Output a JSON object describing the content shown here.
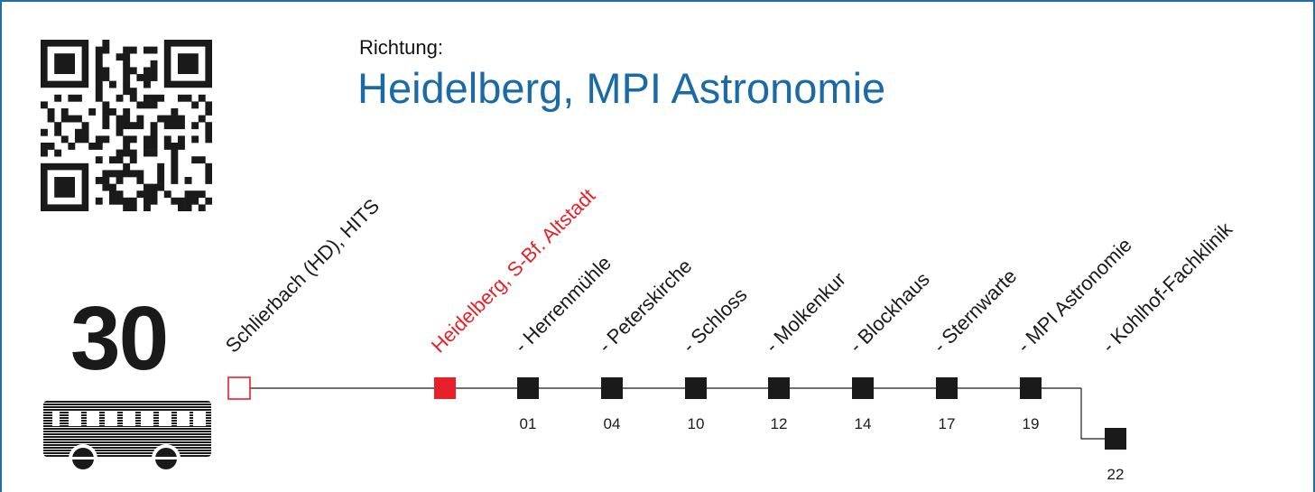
{
  "direction": {
    "label": "Richtung:",
    "destination": "Heidelberg, MPI Astronomie"
  },
  "line": {
    "number": "30",
    "vehicle_icon": "bus-icon"
  },
  "colors": {
    "accent_blue": "#1a6aa8",
    "frame_blue": "#1e6fa8",
    "current_stop_red": "#e8202a",
    "stop_black": "#1a1a1a"
  },
  "stops": [
    {
      "name": "Schlierbach (HD), HITS",
      "minutes": "",
      "type": "origin"
    },
    {
      "name": "Heidelberg, S-Bf. Altstadt",
      "minutes": "",
      "type": "current"
    },
    {
      "name": "- Herrenmühle",
      "minutes": "01",
      "type": "normal"
    },
    {
      "name": "- Peterskirche",
      "minutes": "04",
      "type": "normal"
    },
    {
      "name": "- Schloss",
      "minutes": "10",
      "type": "normal"
    },
    {
      "name": "- Molkenkur",
      "minutes": "12",
      "type": "normal"
    },
    {
      "name": "- Blockhaus",
      "minutes": "14",
      "type": "normal"
    },
    {
      "name": "- Sternwarte",
      "minutes": "17",
      "type": "normal"
    },
    {
      "name": "- MPI Astronomie",
      "minutes": "19",
      "type": "normal"
    },
    {
      "name": "- Kohlhof-Fachklinik",
      "minutes": "22",
      "type": "normal"
    }
  ]
}
